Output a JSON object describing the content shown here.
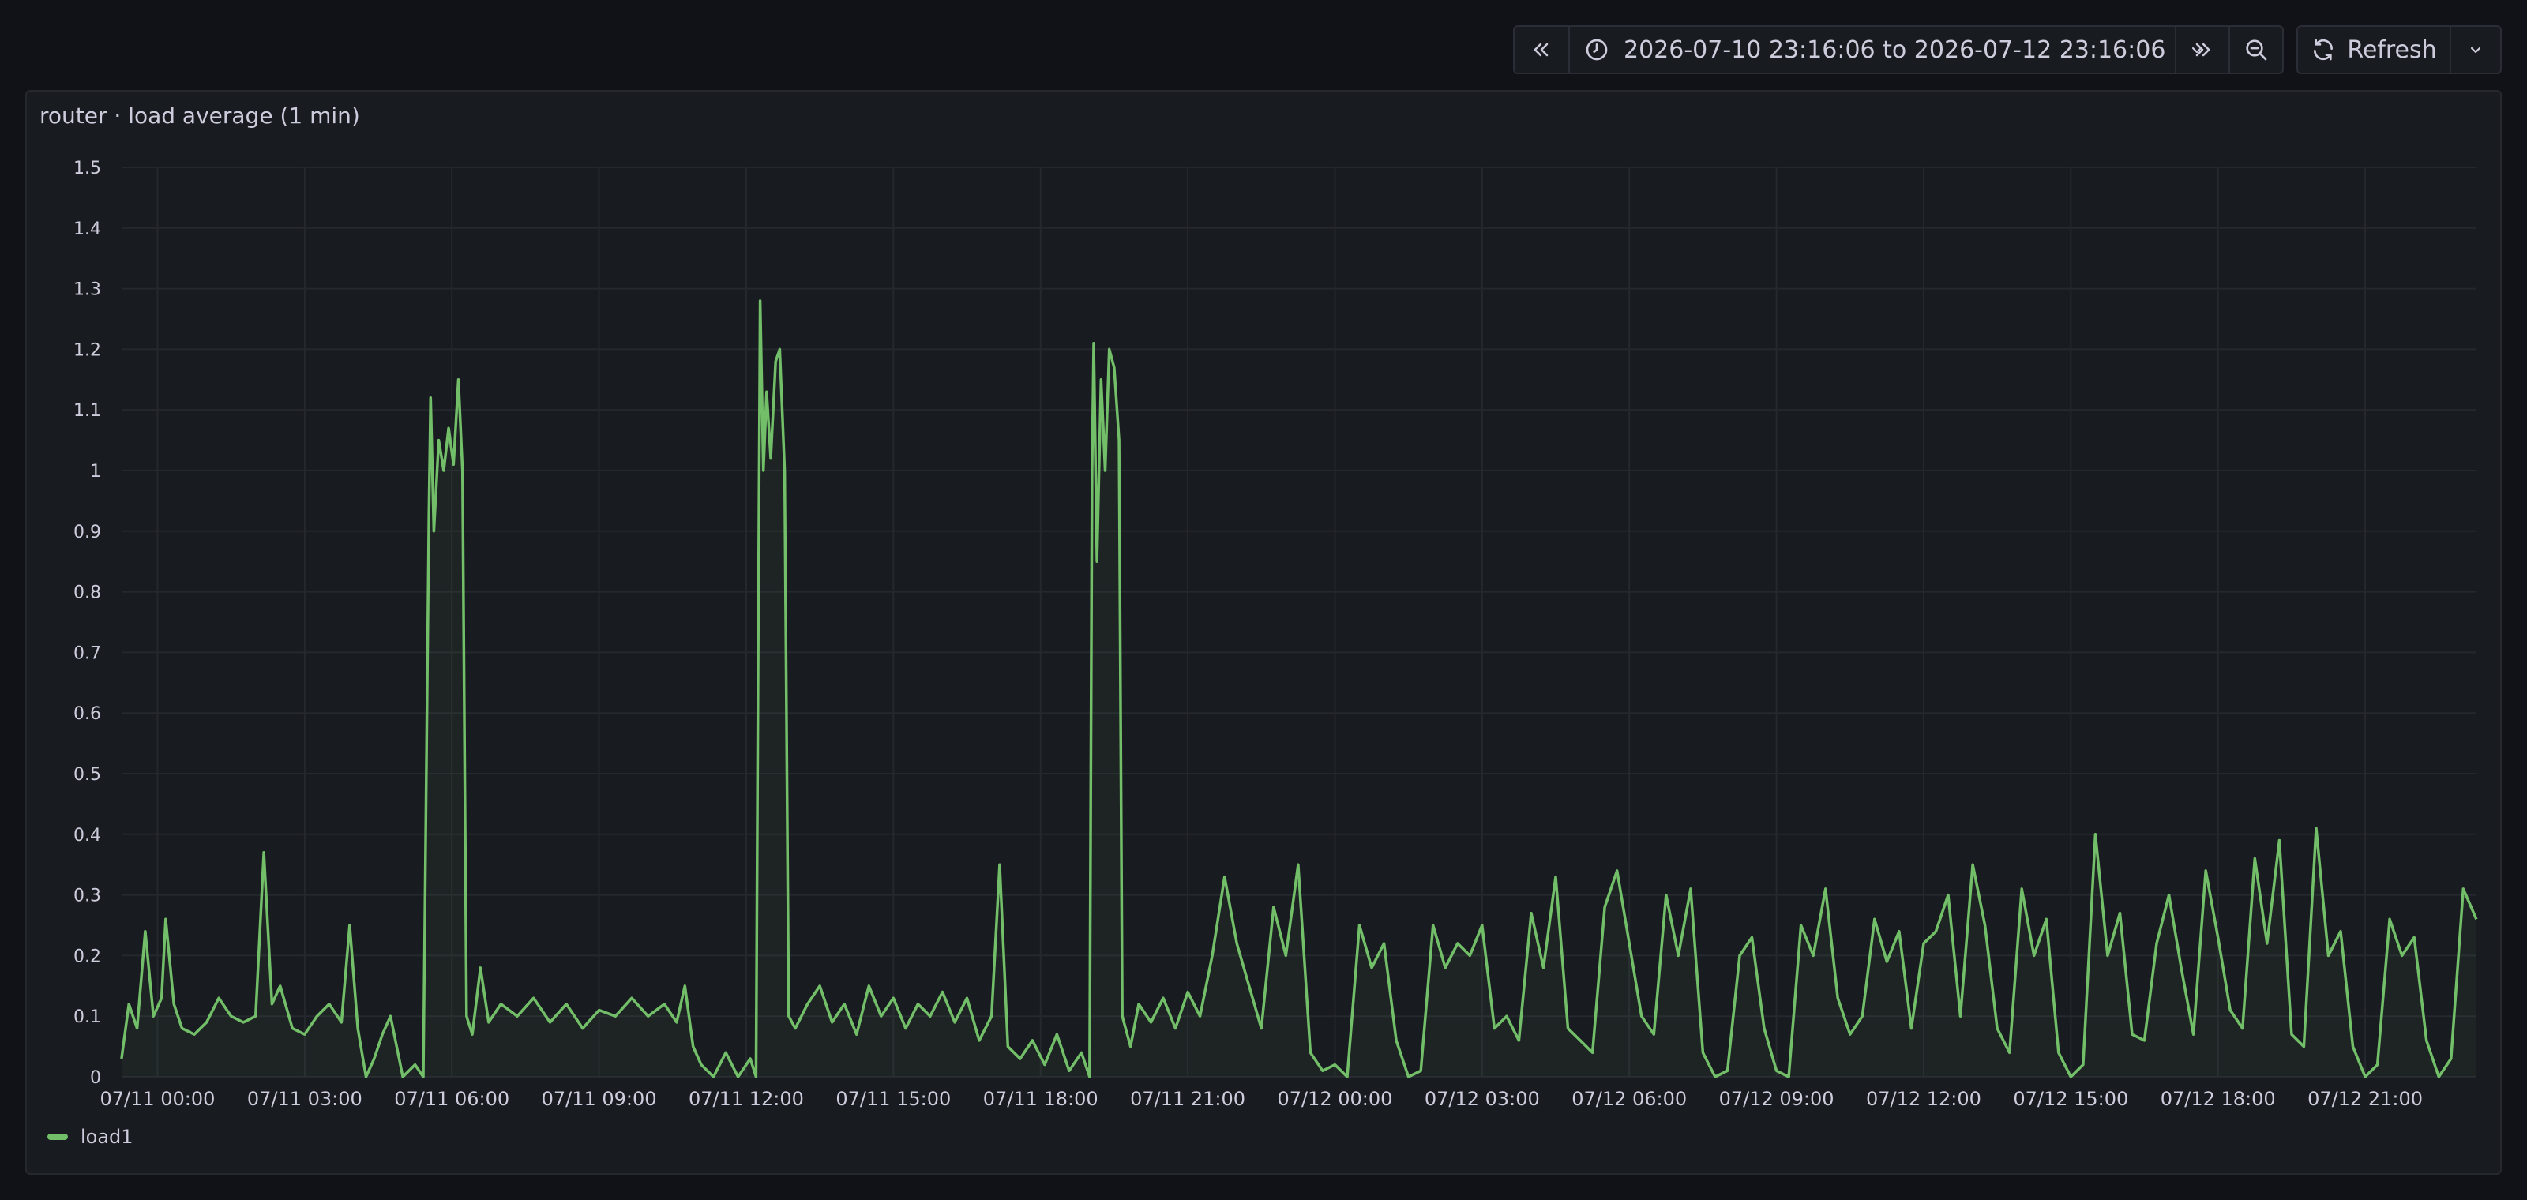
{
  "colors": {
    "background": "#111217",
    "panel": "#181b1f",
    "grid": "#25282e",
    "text": "#ccccdc",
    "series": "#73bf69"
  },
  "toolbar": {
    "back_icon": "chevrons-left-icon",
    "clock_icon": "clock-icon",
    "time_range": "2026-07-10 23:16:06 to 2026-07-12 23:16:06",
    "range_chevron_icon": "chevron-down-icon",
    "forward_icon": "chevrons-right-icon",
    "zoom_out_icon": "zoom-out-icon",
    "refresh_icon": "refresh-icon",
    "refresh_label": "Refresh",
    "refresh_menu_icon": "chevron-down-icon"
  },
  "panel": {
    "title": "router · load average (1 min)"
  },
  "chart_data": {
    "type": "line",
    "title": "router · load average (1 min)",
    "xlabel": "",
    "ylabel": "",
    "x_range": [
      "2026-07-10 23:16:06",
      "2026-07-12 23:16:06"
    ],
    "ylim": [
      0,
      1.5
    ],
    "yticks": [
      0,
      0.1,
      0.2,
      0.3,
      0.4,
      0.5,
      0.6,
      0.7,
      0.8,
      0.9,
      1,
      1.1,
      1.2,
      1.3,
      1.4,
      1.5
    ],
    "xticks": [
      {
        "label": "07/11 00:00",
        "t": "2026-07-11T00:00"
      },
      {
        "label": "07/11 03:00",
        "t": "2026-07-11T03:00"
      },
      {
        "label": "07/11 06:00",
        "t": "2026-07-11T06:00"
      },
      {
        "label": "07/11 09:00",
        "t": "2026-07-11T09:00"
      },
      {
        "label": "07/11 12:00",
        "t": "2026-07-11T12:00"
      },
      {
        "label": "07/11 15:00",
        "t": "2026-07-11T15:00"
      },
      {
        "label": "07/11 18:00",
        "t": "2026-07-11T18:00"
      },
      {
        "label": "07/11 21:00",
        "t": "2026-07-11T21:00"
      },
      {
        "label": "07/12 00:00",
        "t": "2026-07-12T00:00"
      },
      {
        "label": "07/12 03:00",
        "t": "2026-07-12T03:00"
      },
      {
        "label": "07/12 06:00",
        "t": "2026-07-12T06:00"
      },
      {
        "label": "07/12 09:00",
        "t": "2026-07-12T09:00"
      },
      {
        "label": "07/12 12:00",
        "t": "2026-07-12T12:00"
      },
      {
        "label": "07/12 15:00",
        "t": "2026-07-12T15:00"
      },
      {
        "label": "07/12 18:00",
        "t": "2026-07-12T18:00"
      },
      {
        "label": "07/12 21:00",
        "t": "2026-07-12T21:00"
      }
    ],
    "grid": true,
    "legend_position": "bottom-left",
    "series": [
      {
        "name": "load1",
        "color": "#73bf69",
        "points": [
          [
            "07/10 23:16",
            0.03
          ],
          [
            "07/10 23:25",
            0.12
          ],
          [
            "07/10 23:35",
            0.08
          ],
          [
            "07/10 23:45",
            0.24
          ],
          [
            "07/10 23:55",
            0.1
          ],
          [
            "07/11 00:05",
            0.13
          ],
          [
            "07/11 00:10",
            0.26
          ],
          [
            "07/11 00:20",
            0.12
          ],
          [
            "07/11 00:30",
            0.08
          ],
          [
            "07/11 00:45",
            0.07
          ],
          [
            "07/11 01:00",
            0.09
          ],
          [
            "07/11 01:15",
            0.13
          ],
          [
            "07/11 01:30",
            0.1
          ],
          [
            "07/11 01:45",
            0.09
          ],
          [
            "07/11 02:00",
            0.1
          ],
          [
            "07/11 02:10",
            0.37
          ],
          [
            "07/11 02:20",
            0.12
          ],
          [
            "07/11 02:30",
            0.15
          ],
          [
            "07/11 02:45",
            0.08
          ],
          [
            "07/11 03:00",
            0.07
          ],
          [
            "07/11 03:15",
            0.1
          ],
          [
            "07/11 03:30",
            0.12
          ],
          [
            "07/11 03:45",
            0.09
          ],
          [
            "07/11 03:55",
            0.25
          ],
          [
            "07/11 04:05",
            0.08
          ],
          [
            "07/11 04:15",
            0.0
          ],
          [
            "07/11 04:25",
            0.03
          ],
          [
            "07/11 04:35",
            0.07
          ],
          [
            "07/11 04:45",
            0.1
          ],
          [
            "07/11 05:00",
            0.0
          ],
          [
            "07/11 05:15",
            0.02
          ],
          [
            "07/11 05:25",
            0.0
          ],
          [
            "07/11 05:32",
            0.93
          ],
          [
            "07/11 05:34",
            1.12
          ],
          [
            "07/11 05:38",
            0.9
          ],
          [
            "07/11 05:44",
            1.05
          ],
          [
            "07/11 05:50",
            1.0
          ],
          [
            "07/11 05:56",
            1.07
          ],
          [
            "07/11 06:02",
            1.01
          ],
          [
            "07/11 06:08",
            1.15
          ],
          [
            "07/11 06:13",
            1.0
          ],
          [
            "07/11 06:18",
            0.1
          ],
          [
            "07/11 06:25",
            0.07
          ],
          [
            "07/11 06:35",
            0.18
          ],
          [
            "07/11 06:45",
            0.09
          ],
          [
            "07/11 07:00",
            0.12
          ],
          [
            "07/11 07:20",
            0.1
          ],
          [
            "07/11 07:40",
            0.13
          ],
          [
            "07/11 08:00",
            0.09
          ],
          [
            "07/11 08:20",
            0.12
          ],
          [
            "07/11 08:40",
            0.08
          ],
          [
            "07/11 09:00",
            0.11
          ],
          [
            "07/11 09:20",
            0.1
          ],
          [
            "07/11 09:40",
            0.13
          ],
          [
            "07/11 10:00",
            0.1
          ],
          [
            "07/11 10:20",
            0.12
          ],
          [
            "07/11 10:35",
            0.09
          ],
          [
            "07/11 10:45",
            0.15
          ],
          [
            "07/11 10:55",
            0.05
          ],
          [
            "07/11 11:05",
            0.02
          ],
          [
            "07/11 11:20",
            0.0
          ],
          [
            "07/11 11:35",
            0.04
          ],
          [
            "07/11 11:50",
            0.0
          ],
          [
            "07/11 12:05",
            0.03
          ],
          [
            "07/11 12:12",
            0.0
          ],
          [
            "07/11 12:15",
            0.8
          ],
          [
            "07/11 12:17",
            1.28
          ],
          [
            "07/11 12:21",
            1.0
          ],
          [
            "07/11 12:25",
            1.13
          ],
          [
            "07/11 12:30",
            1.02
          ],
          [
            "07/11 12:36",
            1.18
          ],
          [
            "07/11 12:41",
            1.2
          ],
          [
            "07/11 12:47",
            1.0
          ],
          [
            "07/11 12:52",
            0.1
          ],
          [
            "07/11 13:00",
            0.08
          ],
          [
            "07/11 13:15",
            0.12
          ],
          [
            "07/11 13:30",
            0.15
          ],
          [
            "07/11 13:45",
            0.09
          ],
          [
            "07/11 14:00",
            0.12
          ],
          [
            "07/11 14:15",
            0.07
          ],
          [
            "07/11 14:30",
            0.15
          ],
          [
            "07/11 14:45",
            0.1
          ],
          [
            "07/11 15:00",
            0.13
          ],
          [
            "07/11 15:15",
            0.08
          ],
          [
            "07/11 15:30",
            0.12
          ],
          [
            "07/11 15:45",
            0.1
          ],
          [
            "07/11 16:00",
            0.14
          ],
          [
            "07/11 16:15",
            0.09
          ],
          [
            "07/11 16:30",
            0.13
          ],
          [
            "07/11 16:45",
            0.06
          ],
          [
            "07/11 17:00",
            0.1
          ],
          [
            "07/11 17:10",
            0.35
          ],
          [
            "07/11 17:20",
            0.05
          ],
          [
            "07/11 17:35",
            0.03
          ],
          [
            "07/11 17:50",
            0.06
          ],
          [
            "07/11 18:05",
            0.02
          ],
          [
            "07/11 18:20",
            0.07
          ],
          [
            "07/11 18:35",
            0.01
          ],
          [
            "07/11 18:50",
            0.04
          ],
          [
            "07/11 19:00",
            0.0
          ],
          [
            "07/11 19:03",
            1.0
          ],
          [
            "07/11 19:05",
            1.21
          ],
          [
            "07/11 19:09",
            0.85
          ],
          [
            "07/11 19:14",
            1.15
          ],
          [
            "07/11 19:19",
            1.0
          ],
          [
            "07/11 19:24",
            1.2
          ],
          [
            "07/11 19:30",
            1.17
          ],
          [
            "07/11 19:36",
            1.05
          ],
          [
            "07/11 19:40",
            0.1
          ],
          [
            "07/11 19:50",
            0.05
          ],
          [
            "07/11 20:00",
            0.12
          ],
          [
            "07/11 20:15",
            0.09
          ],
          [
            "07/11 20:30",
            0.13
          ],
          [
            "07/11 20:45",
            0.08
          ],
          [
            "07/11 21:00",
            0.14
          ],
          [
            "07/11 21:15",
            0.1
          ],
          [
            "07/11 21:30",
            0.2
          ],
          [
            "07/11 21:45",
            0.33
          ],
          [
            "07/11 22:00",
            0.22
          ],
          [
            "07/11 22:15",
            0.15
          ],
          [
            "07/11 22:30",
            0.08
          ],
          [
            "07/11 22:45",
            0.28
          ],
          [
            "07/11 23:00",
            0.2
          ],
          [
            "07/11 23:15",
            0.35
          ],
          [
            "07/11 23:30",
            0.04
          ],
          [
            "07/11 23:45",
            0.01
          ],
          [
            "07/12 00:00",
            0.02
          ],
          [
            "07/12 00:15",
            0.0
          ],
          [
            "07/12 00:30",
            0.25
          ],
          [
            "07/12 00:45",
            0.18
          ],
          [
            "07/12 01:00",
            0.22
          ],
          [
            "07/12 01:15",
            0.06
          ],
          [
            "07/12 01:30",
            0.0
          ],
          [
            "07/12 01:45",
            0.01
          ],
          [
            "07/12 02:00",
            0.25
          ],
          [
            "07/12 02:15",
            0.18
          ],
          [
            "07/12 02:30",
            0.22
          ],
          [
            "07/12 02:45",
            0.2
          ],
          [
            "07/12 03:00",
            0.25
          ],
          [
            "07/12 03:15",
            0.08
          ],
          [
            "07/12 03:30",
            0.1
          ],
          [
            "07/12 03:45",
            0.06
          ],
          [
            "07/12 04:00",
            0.27
          ],
          [
            "07/12 04:15",
            0.18
          ],
          [
            "07/12 04:30",
            0.33
          ],
          [
            "07/12 04:45",
            0.08
          ],
          [
            "07/12 05:00",
            0.06
          ],
          [
            "07/12 05:15",
            0.04
          ],
          [
            "07/12 05:30",
            0.28
          ],
          [
            "07/12 05:45",
            0.34
          ],
          [
            "07/12 06:00",
            0.22
          ],
          [
            "07/12 06:15",
            0.1
          ],
          [
            "07/12 06:30",
            0.07
          ],
          [
            "07/12 06:45",
            0.3
          ],
          [
            "07/12 07:00",
            0.2
          ],
          [
            "07/12 07:15",
            0.31
          ],
          [
            "07/12 07:30",
            0.04
          ],
          [
            "07/12 07:45",
            0.0
          ],
          [
            "07/12 08:00",
            0.01
          ],
          [
            "07/12 08:15",
            0.2
          ],
          [
            "07/12 08:30",
            0.23
          ],
          [
            "07/12 08:45",
            0.08
          ],
          [
            "07/12 09:00",
            0.01
          ],
          [
            "07/12 09:15",
            0.0
          ],
          [
            "07/12 09:30",
            0.25
          ],
          [
            "07/12 09:45",
            0.2
          ],
          [
            "07/12 10:00",
            0.31
          ],
          [
            "07/12 10:15",
            0.13
          ],
          [
            "07/12 10:30",
            0.07
          ],
          [
            "07/12 10:45",
            0.1
          ],
          [
            "07/12 11:00",
            0.26
          ],
          [
            "07/12 11:15",
            0.19
          ],
          [
            "07/12 11:30",
            0.24
          ],
          [
            "07/12 11:45",
            0.08
          ],
          [
            "07/12 12:00",
            0.22
          ],
          [
            "07/12 12:15",
            0.24
          ],
          [
            "07/12 12:30",
            0.3
          ],
          [
            "07/12 12:45",
            0.1
          ],
          [
            "07/12 13:00",
            0.35
          ],
          [
            "07/12 13:15",
            0.25
          ],
          [
            "07/12 13:30",
            0.08
          ],
          [
            "07/12 13:45",
            0.04
          ],
          [
            "07/12 14:00",
            0.31
          ],
          [
            "07/12 14:15",
            0.2
          ],
          [
            "07/12 14:30",
            0.26
          ],
          [
            "07/12 14:45",
            0.04
          ],
          [
            "07/12 15:00",
            0.0
          ],
          [
            "07/12 15:15",
            0.02
          ],
          [
            "07/12 15:30",
            0.4
          ],
          [
            "07/12 15:45",
            0.2
          ],
          [
            "07/12 16:00",
            0.27
          ],
          [
            "07/12 16:15",
            0.07
          ],
          [
            "07/12 16:30",
            0.06
          ],
          [
            "07/12 16:45",
            0.22
          ],
          [
            "07/12 17:00",
            0.3
          ],
          [
            "07/12 17:15",
            0.18
          ],
          [
            "07/12 17:30",
            0.07
          ],
          [
            "07/12 17:45",
            0.34
          ],
          [
            "07/12 18:00",
            0.23
          ],
          [
            "07/12 18:15",
            0.11
          ],
          [
            "07/12 18:30",
            0.08
          ],
          [
            "07/12 18:45",
            0.36
          ],
          [
            "07/12 19:00",
            0.22
          ],
          [
            "07/12 19:15",
            0.39
          ],
          [
            "07/12 19:30",
            0.07
          ],
          [
            "07/12 19:45",
            0.05
          ],
          [
            "07/12 20:00",
            0.41
          ],
          [
            "07/12 20:15",
            0.2
          ],
          [
            "07/12 20:30",
            0.24
          ],
          [
            "07/12 20:45",
            0.05
          ],
          [
            "07/12 21:00",
            0.0
          ],
          [
            "07/12 21:15",
            0.02
          ],
          [
            "07/12 21:30",
            0.26
          ],
          [
            "07/12 21:45",
            0.2
          ],
          [
            "07/12 22:00",
            0.23
          ],
          [
            "07/12 22:15",
            0.06
          ],
          [
            "07/12 22:30",
            0.0
          ],
          [
            "07/12 22:45",
            0.03
          ],
          [
            "07/12 23:00",
            0.31
          ],
          [
            "07/12 23:16",
            0.26
          ]
        ]
      }
    ]
  }
}
